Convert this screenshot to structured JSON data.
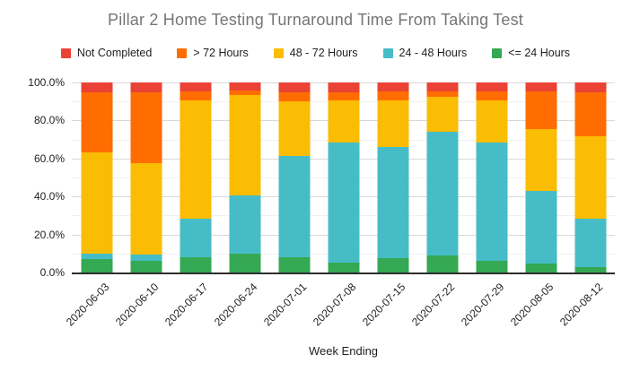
{
  "chart_data": {
    "type": "bar",
    "stacked": true,
    "stack_mode": "percent",
    "title": "Pillar 2 Home Testing Turnaround Time From Taking Test",
    "xlabel": "Week Ending",
    "ylabel": "",
    "ylim": [
      0,
      100
    ],
    "grid": "horizontal",
    "legend_position": "top",
    "y_tick_step_major": 20,
    "y_tick_step_minor": 10,
    "y_tick_labels": [
      "0.0%",
      "20.0%",
      "40.0%",
      "60.0%",
      "80.0%",
      "100.0%"
    ],
    "categories": [
      "2020-06-03",
      "2020-06-10",
      "2020-06-17",
      "2020-06-24",
      "2020-07-01",
      "2020-07-08",
      "2020-07-15",
      "2020-07-22",
      "2020-07-29",
      "2020-08-05",
      "2020-08-12"
    ],
    "series": [
      {
        "name": "Not Completed",
        "color": "#EA4335",
        "values": [
          5,
          5,
          4.5,
          4,
          5,
          5,
          4.5,
          4.5,
          4.5,
          4.5,
          5
        ]
      },
      {
        "name": "> 72 Hours",
        "color": "#FF6D01",
        "values": [
          32,
          37.5,
          5,
          2.5,
          5,
          4.5,
          5,
          3,
          5,
          20,
          23.5
        ]
      },
      {
        "name": "48 - 72 Hours",
        "color": "#FBBC04",
        "values": [
          53,
          48,
          62,
          53,
          28.5,
          22,
          24.5,
          18.5,
          22,
          32.5,
          43
        ]
      },
      {
        "name": "24 - 48 Hours",
        "color": "#46BDC6",
        "values": [
          3,
          3.5,
          20.5,
          30.5,
          53.5,
          63.5,
          58.5,
          65,
          62.5,
          38.5,
          25.5
        ]
      },
      {
        "name": "<= 24 Hours",
        "color": "#34A853",
        "values": [
          7,
          6,
          8,
          10,
          8,
          5,
          7.5,
          9,
          6,
          4.5,
          3
        ]
      }
    ],
    "colors": {
      "title_text": "#757575",
      "axis_text": "#1f1f1f",
      "gridline_major": "#d9d9d9",
      "gridline_minor": "#f1f1f1",
      "axis_line": "#2e2e2e",
      "background": "#ffffff"
    }
  }
}
